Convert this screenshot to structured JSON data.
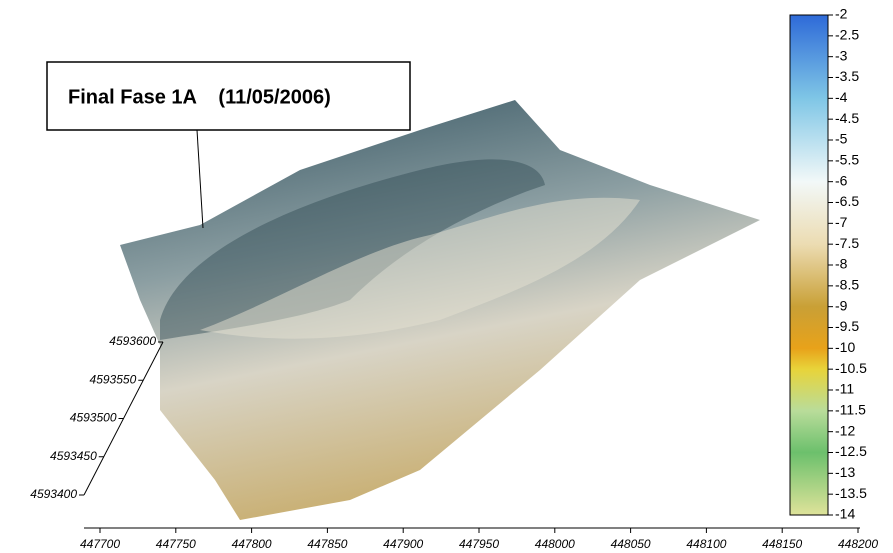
{
  "chart_data": {
    "type": "surface3d",
    "title": "Final Fase 1A    (11/05/2006)",
    "xlim": [
      447700,
      448200
    ],
    "xticks": [
      447700,
      447750,
      447800,
      447850,
      447900,
      447950,
      448000,
      448050,
      448100,
      448150,
      448200
    ],
    "ylim": [
      4593400,
      4593600
    ],
    "yticks": [
      4593400,
      4593450,
      4593500,
      4593550,
      4593600
    ],
    "clim": [
      -14,
      -2
    ],
    "cticks": [
      -2,
      -2.5,
      -3,
      -3.5,
      -4,
      -4.5,
      -5,
      -5.5,
      -6,
      -6.5,
      -7,
      -7.5,
      -8,
      -8.5,
      -9,
      -9.5,
      -10,
      -10.5,
      -11,
      -11.5,
      -12,
      -12.5,
      -13,
      -13.5,
      -14
    ],
    "colorscale": [
      [
        -2,
        "#2e6ad8"
      ],
      [
        -4,
        "#7fc6e6"
      ],
      [
        -6,
        "#f2f8f8"
      ],
      [
        -7.5,
        "#ecdcb2"
      ],
      [
        -9,
        "#c9a036"
      ],
      [
        -10,
        "#e8a21a"
      ],
      [
        -10.5,
        "#e8d43a"
      ],
      [
        -11.5,
        "#b9dc9a"
      ],
      [
        -12.5,
        "#6cc06c"
      ],
      [
        -14,
        "#dfe39a"
      ]
    ]
  }
}
